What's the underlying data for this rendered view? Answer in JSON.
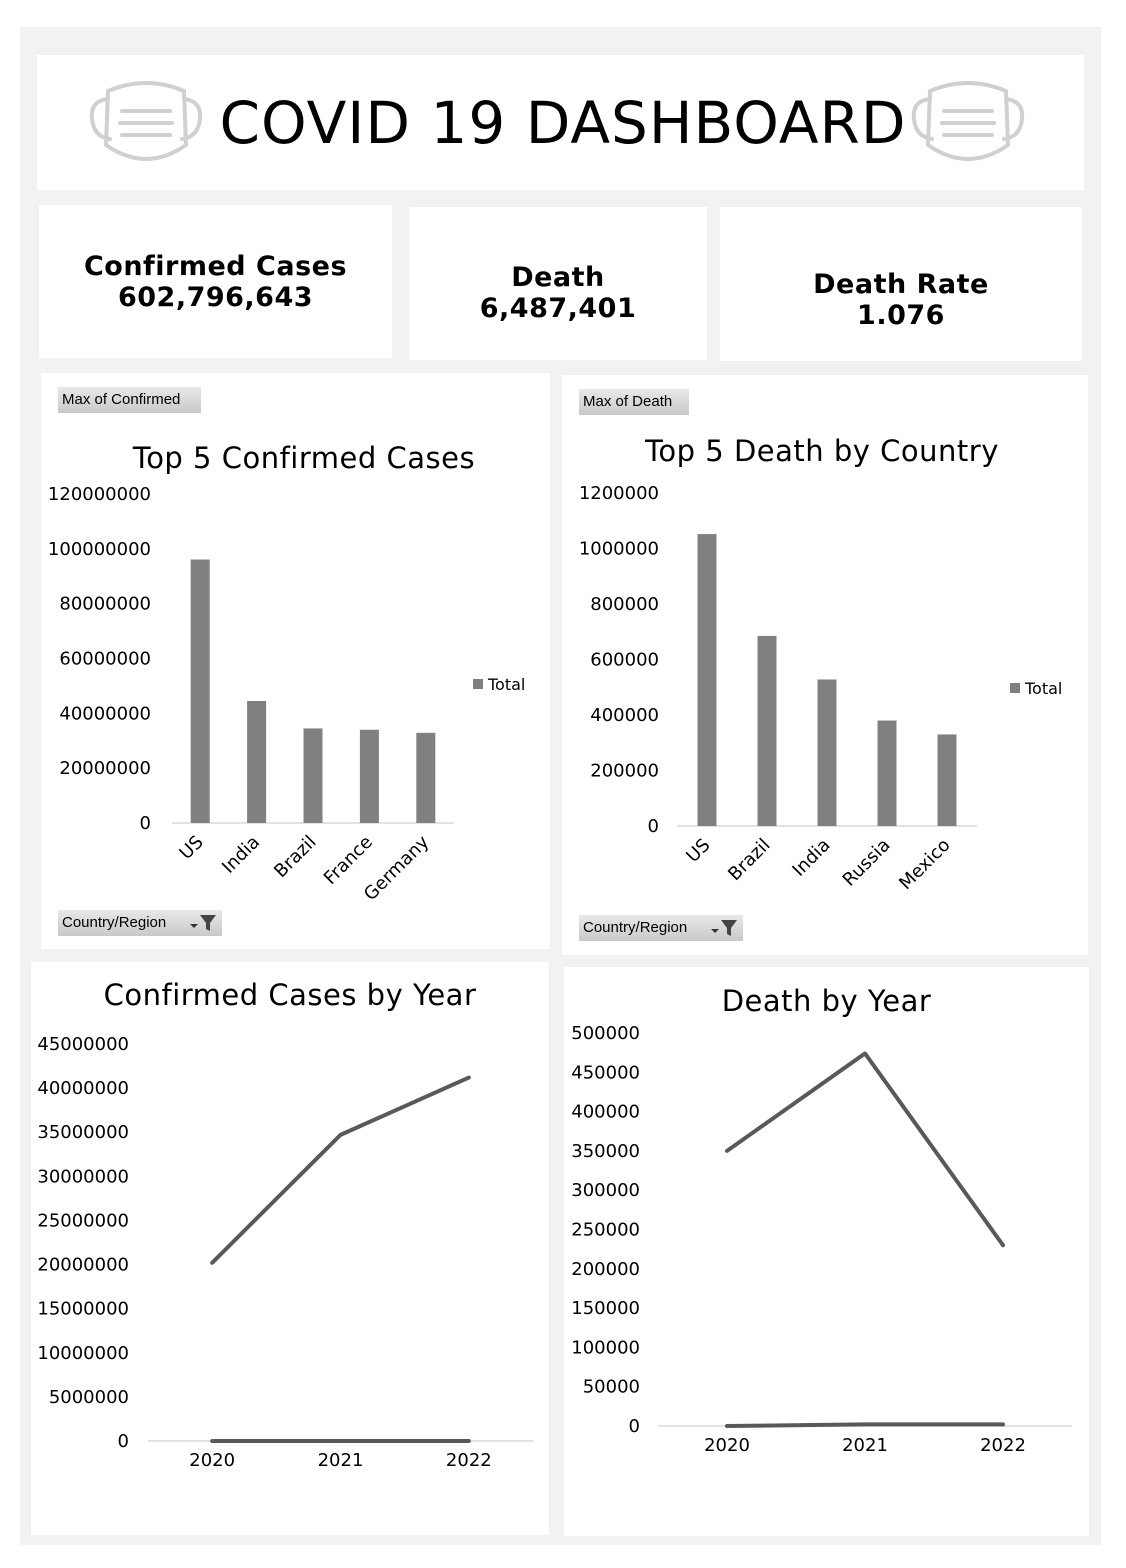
{
  "dashboard": {
    "title": "COVID 19 DASHBOARD",
    "icons": {
      "left": "face-mask-icon",
      "right": "face-mask-icon"
    }
  },
  "kpis": {
    "confirmed": {
      "label": "Confirmed Cases",
      "value": "602,796,643"
    },
    "death": {
      "label": "Death",
      "value": "6,487,401"
    },
    "rate": {
      "label": "Death Rate",
      "value": "1.076"
    }
  },
  "filters": {
    "confirmed_value_field": "Max of Confirmed",
    "death_value_field": "Max of Death",
    "axis_field": "Country/Region",
    "filter_icon": "funnel-filter-icon"
  },
  "colors": {
    "bar": "#808080",
    "line": "#595959",
    "frame": "#f2f2f2",
    "axis": "#d9d9d9"
  },
  "chart_data": [
    {
      "id": "top5-confirmed",
      "type": "bar",
      "title": "Top 5 Confirmed Cases",
      "categories": [
        "US",
        "India",
        "Brazil",
        "France",
        "Germany"
      ],
      "series": [
        {
          "name": "Total",
          "values": [
            96100000,
            44500000,
            34500000,
            34000000,
            32900000
          ]
        }
      ],
      "ylim": [
        0,
        120000000
      ],
      "yticks": [
        "0",
        "20000000",
        "40000000",
        "60000000",
        "80000000",
        "100000000",
        "120000000"
      ],
      "legend": "right",
      "grid": false
    },
    {
      "id": "top5-death",
      "type": "bar",
      "title": "Top 5 Death by Country",
      "categories": [
        "US",
        "Brazil",
        "India",
        "Russia",
        "Mexico"
      ],
      "series": [
        {
          "name": "Total",
          "values": [
            1052000,
            685000,
            528000,
            380000,
            330000
          ]
        }
      ],
      "ylim": [
        0,
        1200000
      ],
      "yticks": [
        "0",
        "200000",
        "400000",
        "600000",
        "800000",
        "1000000",
        "1200000"
      ],
      "legend": "right",
      "grid": false
    },
    {
      "id": "confirmed-by-year",
      "type": "line",
      "title": "Confirmed Cases by Year",
      "categories": [
        "2020",
        "2021",
        "2022"
      ],
      "series": [
        {
          "values": [
            20200000,
            34700000,
            41200000
          ]
        },
        {
          "values": [
            0,
            0,
            0
          ]
        }
      ],
      "ylim": [
        0,
        45000000
      ],
      "yticks": [
        "0",
        "5000000",
        "10000000",
        "15000000",
        "20000000",
        "25000000",
        "30000000",
        "35000000",
        "40000000",
        "45000000"
      ],
      "grid": false
    },
    {
      "id": "death-by-year",
      "type": "line",
      "title": "Death by Year",
      "categories": [
        "2020",
        "2021",
        "2022"
      ],
      "series": [
        {
          "values": [
            350000,
            474000,
            230000
          ]
        },
        {
          "values": [
            0,
            2000,
            2000
          ]
        }
      ],
      "ylim": [
        0,
        500000
      ],
      "yticks": [
        "0",
        "50000",
        "100000",
        "150000",
        "200000",
        "250000",
        "300000",
        "350000",
        "400000",
        "450000",
        "500000"
      ],
      "grid": false
    }
  ]
}
